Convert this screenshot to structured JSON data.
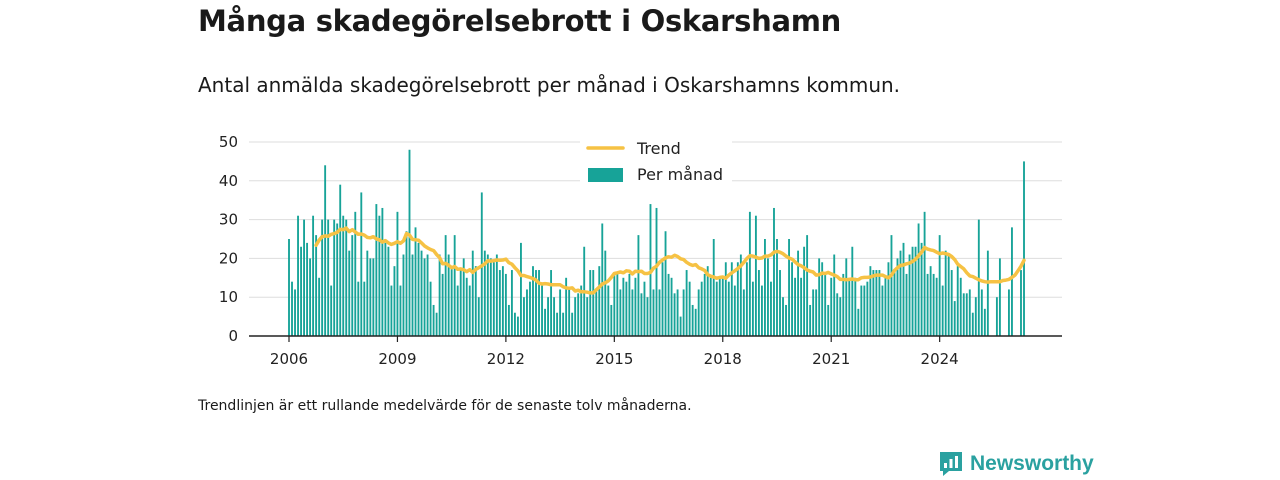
{
  "title": "Många skadegörelsebrott i Oskarshamn",
  "subtitle": "Antal anmälda skadegörelsebrott per månad i Oskarshamns kommun.",
  "footnote": "Trendlinjen är ett rullande medelvärde för de senaste tolv månaderna.",
  "brand": {
    "name": "Newsworthy",
    "icon": "newsworthy-logo-icon"
  },
  "colors": {
    "bars": "#17a398",
    "trend": "#f6c244",
    "grid": "#dddddd",
    "axis": "#222222",
    "brand": "#2aa1a0"
  },
  "chart_data": {
    "type": "bar",
    "title": "",
    "xlabel": "",
    "ylabel": "",
    "x_ticks": [
      "2006",
      "2009",
      "2012",
      "2015",
      "2018",
      "2021",
      "2024"
    ],
    "y_ticks": [
      "0",
      "10",
      "20",
      "30",
      "40",
      "50"
    ],
    "ylim": [
      0,
      50
    ],
    "grid": true,
    "legend_position": "top-center",
    "start_month": "2006-01",
    "series": [
      {
        "name": "Per månad",
        "type": "bar",
        "values": [
          25,
          14,
          12,
          31,
          23,
          30,
          24,
          20,
          31,
          26,
          15,
          30,
          44,
          30,
          13,
          30,
          29,
          39,
          31,
          30,
          22,
          26,
          32,
          14,
          37,
          14,
          22,
          20,
          20,
          34,
          31,
          33,
          24,
          23,
          13,
          18,
          32,
          13,
          21,
          27,
          48,
          21,
          28,
          24,
          22,
          20,
          21,
          14,
          8,
          6,
          21,
          16,
          26,
          21,
          18,
          26,
          13,
          17,
          20,
          15,
          13,
          22,
          18,
          10,
          37,
          22,
          21,
          20,
          19,
          21,
          17,
          18,
          16,
          8,
          17,
          6,
          5,
          24,
          10,
          12,
          14,
          18,
          17,
          17,
          13,
          7,
          10,
          17,
          10,
          6,
          12,
          6,
          15,
          12,
          6,
          10,
          11,
          13,
          23,
          10,
          17,
          17,
          12,
          18,
          29,
          22,
          13,
          8,
          16,
          16,
          12,
          15,
          14,
          16,
          12,
          15,
          26,
          11,
          14,
          10,
          34,
          12,
          33,
          12,
          19,
          27,
          16,
          15,
          11,
          12,
          5,
          12,
          17,
          14,
          8,
          7,
          12,
          14,
          16,
          18,
          15,
          25,
          14,
          15,
          15,
          19,
          14,
          19,
          13,
          19,
          21,
          12,
          19,
          32,
          14,
          31,
          17,
          13,
          25,
          20,
          14,
          33,
          25,
          17,
          10,
          8,
          25,
          19,
          15,
          22,
          15,
          23,
          26,
          8,
          12,
          12,
          20,
          19,
          16,
          8,
          15,
          21,
          11,
          10,
          16,
          20,
          15,
          23,
          15,
          7,
          13,
          13,
          14,
          18,
          17,
          17,
          17,
          13,
          15,
          19,
          26,
          17,
          20,
          22,
          24,
          16,
          21,
          23,
          23,
          29,
          24,
          32,
          16,
          18,
          16,
          15,
          26,
          13,
          22,
          21,
          17,
          9,
          18,
          15,
          11,
          11,
          12,
          6,
          10,
          30,
          12,
          7,
          22,
          0,
          0,
          10,
          20,
          0,
          0,
          12,
          28,
          0,
          0,
          17,
          45
        ],
        "trend": [
          23.4,
          24.7,
          25.6,
          25.8,
          25.7,
          26.2,
          26.4,
          26.7,
          27.5,
          27.4,
          27.8,
          26.9,
          27.4,
          26.8,
          26.2,
          26.3,
          26.0,
          25.4,
          25.3,
          25.6,
          25.0,
          24.8,
          24.2,
          24.6,
          24.0,
          23.6,
          23.9,
          24.3,
          23.9,
          24.5,
          26.4,
          26.0,
          24.9,
          24.8,
          24.7,
          24.0,
          23.2,
          22.7,
          22.3,
          22.0,
          21.0,
          20.2,
          18.6,
          18.7,
          18.2,
          17.6,
          17.9,
          17.2,
          17.3,
          17.1,
          16.6,
          17.1,
          16.4,
          17.2,
          17.6,
          18.1,
          18.6,
          19.4,
          19.3,
          19.4,
          19.6,
          19.5,
          19.6,
          19.8,
          18.9,
          18.5,
          17.6,
          16.8,
          15.6,
          15.6,
          15.3,
          15.1,
          14.8,
          14.4,
          13.6,
          13.4,
          13.5,
          13.4,
          13.2,
          13.2,
          13.2,
          13.2,
          12.7,
          12.4,
          12.3,
          12.4,
          11.6,
          11.8,
          11.4,
          11.4,
          11.3,
          11.1,
          11.1,
          11.9,
          12.6,
          13.4,
          13.7,
          14.2,
          15.1,
          16.1,
          16.3,
          16.5,
          16.3,
          16.8,
          16.7,
          16.0,
          16.7,
          16.6,
          16.7,
          16.1,
          16.1,
          16.4,
          17.5,
          18.0,
          19.0,
          19.6,
          20.1,
          20.4,
          20.3,
          20.8,
          20.5,
          19.9,
          19.7,
          19.0,
          18.5,
          18.2,
          18.4,
          17.6,
          17.3,
          16.9,
          15.8,
          15.4,
          15.2,
          14.9,
          15.1,
          15.2,
          14.9,
          15.7,
          16.3,
          16.8,
          17.4,
          18.1,
          19.0,
          20.0,
          20.7,
          20.6,
          20.3,
          20.0,
          20.1,
          20.6,
          20.6,
          20.9,
          21.6,
          21.8,
          21.6,
          21.2,
          20.6,
          20.1,
          19.8,
          19.1,
          18.4,
          18.1,
          17.6,
          17.0,
          16.7,
          16.5,
          15.7,
          15.8,
          16.2,
          16.1,
          16.4,
          16.0,
          15.7,
          15.3,
          14.6,
          14.6,
          14.5,
          14.6,
          14.7,
          14.5,
          14.5,
          15.0,
          15.1,
          15.1,
          15.2,
          15.5,
          15.7,
          15.7,
          15.7,
          15.3,
          15.0,
          15.7,
          16.9,
          17.6,
          18.2,
          18.3,
          18.6,
          18.8,
          19.2,
          19.8,
          20.7,
          21.6,
          22.8,
          22.4,
          22.2,
          22.0,
          21.6,
          21.2,
          21.4,
          21.2,
          21.0,
          20.5,
          19.7,
          18.5,
          17.9,
          17.3,
          16.3,
          15.5,
          15.3,
          14.9,
          14.5,
          14.2,
          14.0,
          13.9,
          14.0,
          14.0,
          14.0,
          14.0,
          14.3,
          14.4,
          14.6,
          15.1,
          15.7,
          16.8,
          18.0,
          19.5
        ]
      }
    ]
  },
  "legend": [
    {
      "label": "Trend",
      "kind": "line"
    },
    {
      "label": "Per månad",
      "kind": "bar"
    }
  ]
}
